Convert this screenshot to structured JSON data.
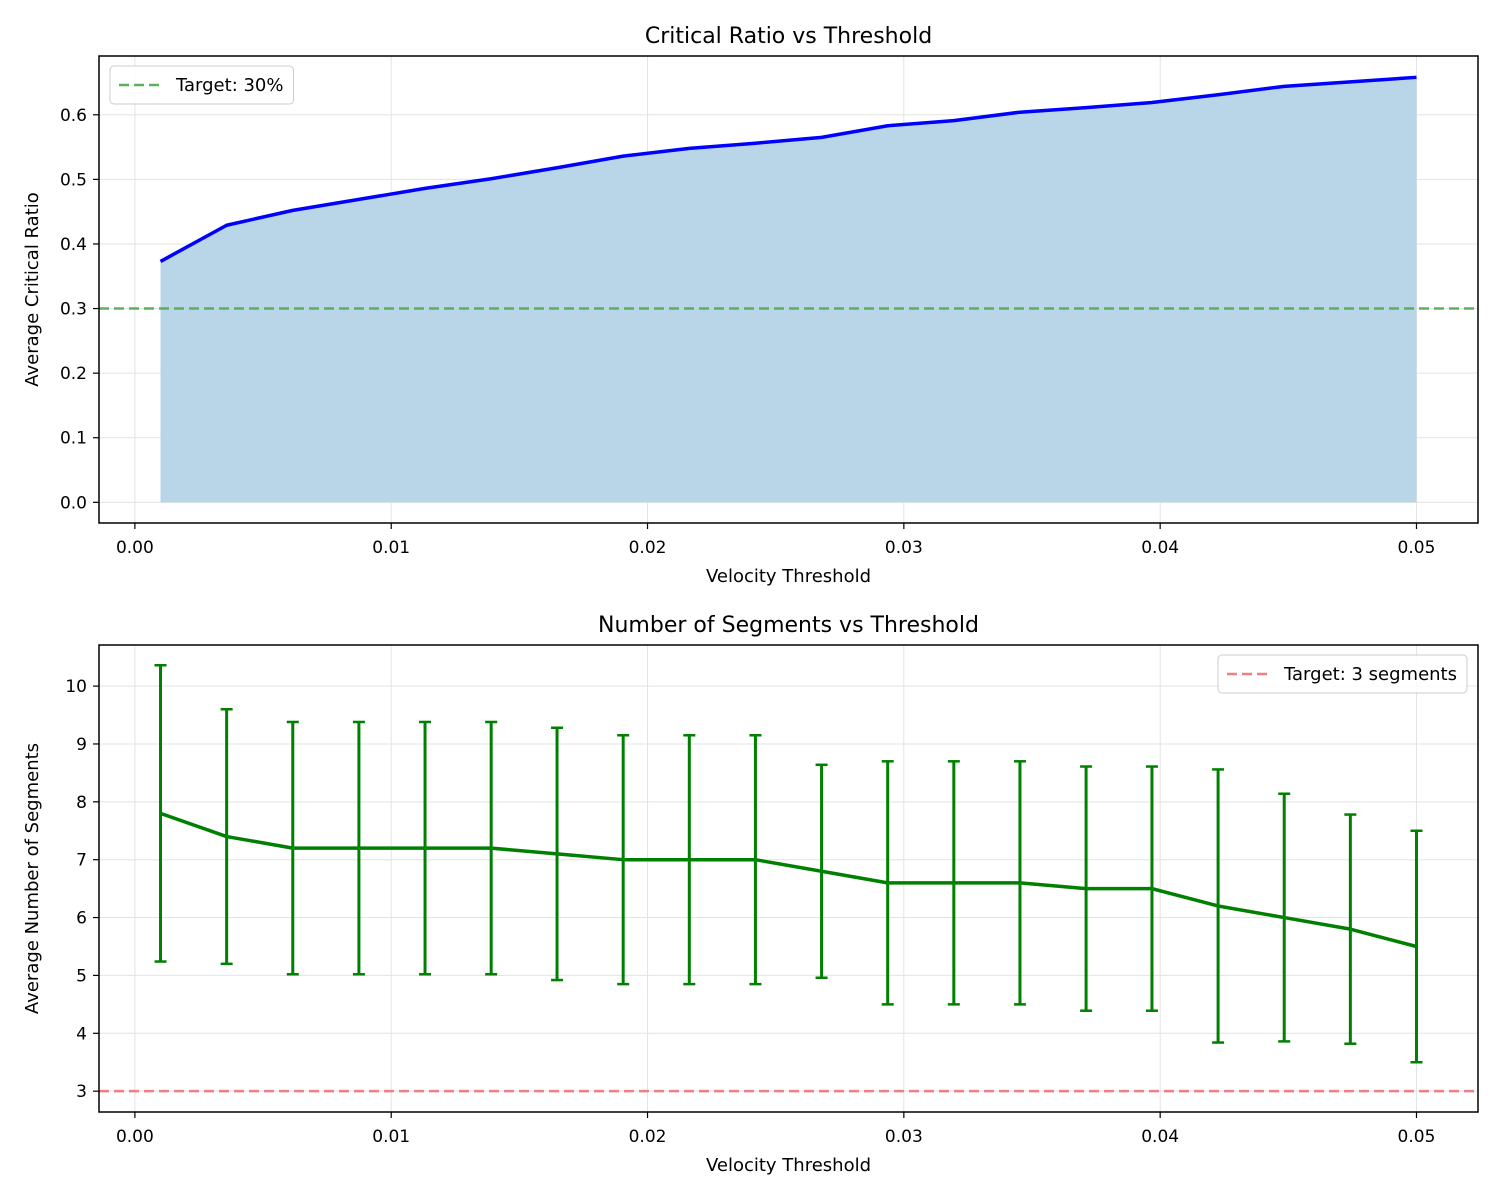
{
  "chart_data": [
    {
      "type": "area",
      "title": "Critical Ratio vs Threshold",
      "xlabel": "Velocity Threshold",
      "ylabel": "Average Critical Ratio",
      "xlim": [
        -0.0014,
        0.0524
      ],
      "ylim": [
        -0.032,
        0.691
      ],
      "xticks": [
        0.0,
        0.01,
        0.02,
        0.03,
        0.04,
        0.05
      ],
      "xtick_labels": [
        "0.00",
        "0.01",
        "0.02",
        "0.03",
        "0.04",
        "0.05"
      ],
      "yticks": [
        0.0,
        0.1,
        0.2,
        0.3,
        0.4,
        0.5,
        0.6
      ],
      "ytick_labels": [
        "0.0",
        "0.1",
        "0.2",
        "0.3",
        "0.4",
        "0.5",
        "0.6"
      ],
      "grid": true,
      "legend_position": "upper-left",
      "legend": [
        {
          "label": "Target: 30%",
          "color": "#5cb05c",
          "style": "dashed"
        }
      ],
      "line_color": "#0000ff",
      "fill_color": "#b9d5e8",
      "reference_line": {
        "y": 0.3,
        "color": "#5cb05c"
      },
      "series": [
        {
          "x": [
            0.001,
            0.00358,
            0.00616,
            0.00874,
            0.01132,
            0.0139,
            0.01647,
            0.01905,
            0.02163,
            0.02421,
            0.02679,
            0.02937,
            0.03195,
            0.03453,
            0.03711,
            0.03968,
            0.04226,
            0.04484,
            0.04742,
            0.05
          ],
          "values": [
            0.373,
            0.429,
            0.452,
            0.469,
            0.486,
            0.501,
            0.518,
            0.536,
            0.548,
            0.556,
            0.565,
            0.583,
            0.591,
            0.604,
            0.611,
            0.619,
            0.631,
            0.644,
            0.651,
            0.658
          ]
        }
      ]
    },
    {
      "type": "line",
      "title": "Number of Segments vs Threshold",
      "xlabel": "Velocity Threshold",
      "ylabel": "Average Number of Segments",
      "xlim": [
        -0.0014,
        0.0524
      ],
      "ylim": [
        2.64,
        10.71
      ],
      "xticks": [
        0.0,
        0.01,
        0.02,
        0.03,
        0.04,
        0.05
      ],
      "xtick_labels": [
        "0.00",
        "0.01",
        "0.02",
        "0.03",
        "0.04",
        "0.05"
      ],
      "yticks": [
        3,
        4,
        5,
        6,
        7,
        8,
        9,
        10
      ],
      "ytick_labels": [
        "3",
        "4",
        "5",
        "6",
        "7",
        "8",
        "9",
        "10"
      ],
      "grid": true,
      "legend_position": "upper-right",
      "legend": [
        {
          "label": "Target: 3 segments",
          "color": "#f07f7f",
          "style": "dashed"
        }
      ],
      "line_color": "#008000",
      "reference_line": {
        "y": 3,
        "color": "#f07f7f"
      },
      "series": [
        {
          "x": [
            0.001,
            0.00358,
            0.00616,
            0.00874,
            0.01132,
            0.0139,
            0.01647,
            0.01905,
            0.02163,
            0.02421,
            0.02679,
            0.02937,
            0.03195,
            0.03453,
            0.03711,
            0.03968,
            0.04226,
            0.04484,
            0.04742,
            0.05
          ],
          "values": [
            7.8,
            7.4,
            7.2,
            7.2,
            7.2,
            7.2,
            7.1,
            7.0,
            7.0,
            7.0,
            6.8,
            6.6,
            6.6,
            6.6,
            6.5,
            6.5,
            6.2,
            6.0,
            5.8,
            5.5
          ],
          "error": [
            2.56,
            2.2,
            2.18,
            2.18,
            2.18,
            2.18,
            2.18,
            2.15,
            2.15,
            2.15,
            1.84,
            2.1,
            2.1,
            2.1,
            2.11,
            2.11,
            2.36,
            2.14,
            1.98,
            2.0
          ]
        }
      ]
    }
  ]
}
